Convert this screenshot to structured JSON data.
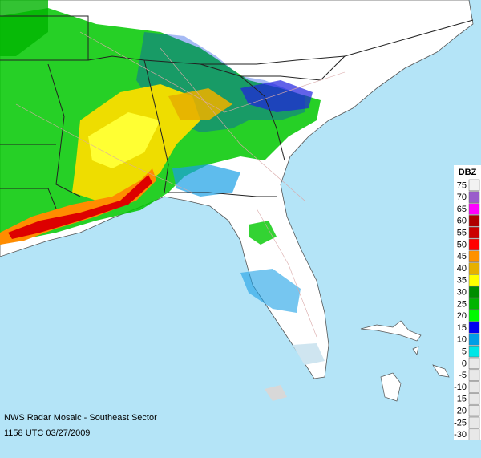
{
  "caption": {
    "line1": "NWS Radar Mosaic - Southeast Sector",
    "line2": "1158 UTC 03/27/2009"
  },
  "legend": {
    "title": "DBZ",
    "entries": [
      {
        "label": "75",
        "color": "#f2f2f2"
      },
      {
        "label": "70",
        "color": "#9a5ccb"
      },
      {
        "label": "65",
        "color": "#ff00ff"
      },
      {
        "label": "60",
        "color": "#b00000"
      },
      {
        "label": "55",
        "color": "#cc0000"
      },
      {
        "label": "50",
        "color": "#ff0000"
      },
      {
        "label": "45",
        "color": "#ff9100"
      },
      {
        "label": "40",
        "color": "#e6b000"
      },
      {
        "label": "35",
        "color": "#ffff00"
      },
      {
        "label": "30",
        "color": "#008d00"
      },
      {
        "label": "25",
        "color": "#00b400"
      },
      {
        "label": "20",
        "color": "#00fa00"
      },
      {
        "label": "15",
        "color": "#0000f0"
      },
      {
        "label": "10",
        "color": "#009ee6"
      },
      {
        "label": "5",
        "color": "#00e6e6"
      },
      {
        "label": "0",
        "color": "#e8e8e8"
      },
      {
        "label": "-5",
        "color": "#e8e8e8"
      },
      {
        "label": "-10",
        "color": "#e8e8e8"
      },
      {
        "label": "-15",
        "color": "#e8e8e8"
      },
      {
        "label": "-20",
        "color": "#e8e8e8"
      },
      {
        "label": "-25",
        "color": "#e8e8e8"
      },
      {
        "label": "-30",
        "color": "#e8e8e8"
      }
    ]
  }
}
